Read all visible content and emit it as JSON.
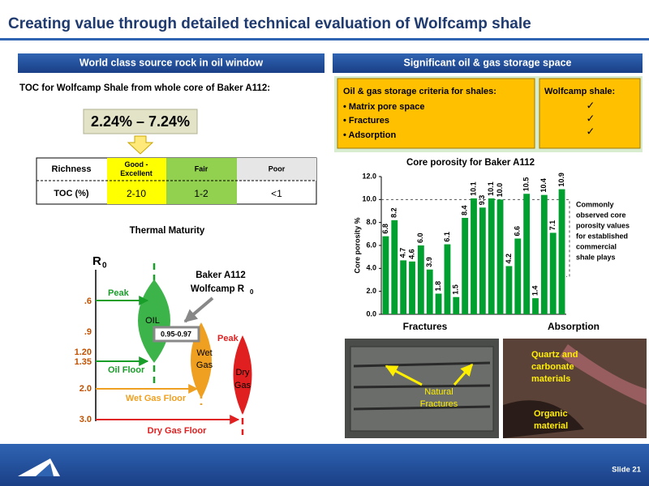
{
  "header": {
    "title": "Creating value through detailed technical evaluation of Wolfcamp shale"
  },
  "left": {
    "section_title": "World class source rock in oil window",
    "toc_caption": "TOC for Wolfcamp Shale from whole core of Baker A112:",
    "toc_range": "2.24% – 7.24%",
    "table": {
      "header": [
        "Richness",
        "Good - Excellent",
        "Fair",
        "Poor"
      ],
      "rows": [
        [
          "TOC (%)",
          "2-10",
          "1-2",
          "<1"
        ]
      ]
    },
    "maturity": {
      "title": "Thermal Maturity",
      "axis_label": "R",
      "axis_subscript": "0",
      "ticks": [
        ".6",
        ".9",
        "1.20",
        "1.35",
        "2.0",
        "3.0"
      ],
      "peak": "Peak",
      "oil": "OIL",
      "oil_floor": "Oil Floor",
      "wet_gas": [
        "Wet",
        "Gas"
      ],
      "wet_gas_floor": "Wet Gas Floor",
      "peak_gas": "Peak",
      "dry_gas": [
        "Dry",
        "Gas"
      ],
      "dry_gas_floor": "Dry Gas Floor",
      "callout": [
        "Baker A112",
        "Wolfcamp R"
      ],
      "callout_subscript": "0",
      "measured": "0.95-0.97"
    }
  },
  "right": {
    "section_title": "Significant oil & gas storage space",
    "criteria": {
      "title": "Oil & gas storage criteria for shales:",
      "items": [
        "• Matrix pore space",
        "• Fractures",
        "• Adsorption"
      ]
    },
    "wolfcamp": {
      "title": "Wolfcamp shale:",
      "checks": [
        "✓",
        "✓",
        "✓"
      ]
    },
    "photos": {
      "fractures": [
        "Natural",
        "Fractures"
      ],
      "minerals": [
        "Quartz and",
        "carbonate",
        "materials"
      ],
      "organic": [
        "Organic",
        "material"
      ]
    }
  },
  "chart_data": {
    "type": "bar",
    "title": "Core porosity for Baker A112",
    "ylabel": "Core porosity %",
    "categories": [
      null,
      null,
      null,
      null,
      null,
      null,
      null,
      null,
      null,
      null,
      null,
      null,
      null,
      null,
      null,
      null,
      null,
      null,
      null,
      null,
      null
    ],
    "values": [
      6.8,
      8.2,
      4.7,
      4.6,
      6.0,
      3.9,
      1.8,
      6.1,
      1.5,
      8.4,
      10.1,
      9.3,
      10.1,
      10.0,
      4.2,
      6.6,
      10.5,
      1.4,
      10.4,
      7.1,
      10.9
    ],
    "value_labels": [
      "6.8",
      "8.2",
      "4.7",
      "4.6",
      "6.0",
      "3.9",
      "1.8",
      "6.1",
      "1.5",
      "8.4",
      "10.1",
      "9.3",
      "10.1",
      "10.0",
      "4.2",
      "6.6",
      "10.5",
      "1.4",
      "10.4",
      "7.1",
      "10.9"
    ],
    "color": "#00a030",
    "ylim": [
      0,
      12
    ],
    "yticks": [
      {
        "value": 0,
        "label": "0.0"
      },
      {
        "value": 2,
        "label": "2.0"
      },
      {
        "value": 4,
        "label": "4.0"
      },
      {
        "value": 6,
        "label": "6.0"
      },
      {
        "value": 8,
        "label": "8.0"
      },
      {
        "value": 10,
        "label": "10.0"
      },
      {
        "value": 12,
        "label": "12.0"
      }
    ],
    "reference_line": 10,
    "annotation": [
      "Commonly",
      "observed core",
      "porosity values",
      "for established",
      "commercial",
      "shale plays"
    ],
    "x_annotations": [
      "Fractures",
      "Absorption"
    ]
  },
  "footer": {
    "slide": "Slide 21"
  }
}
